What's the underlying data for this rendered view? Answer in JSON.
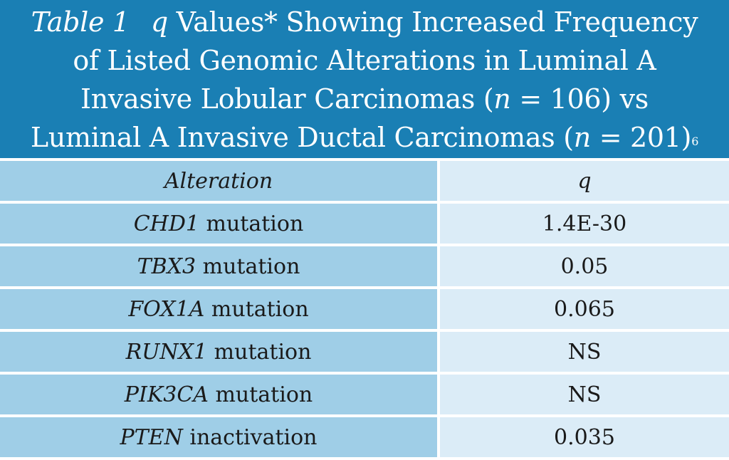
{
  "title": {
    "label": "Table 1",
    "q": "q",
    "line1_rest": " Values* Showing Increased Frequency",
    "line2": "of Listed Genomic Alterations in Luminal A",
    "line3_a": "Invasive Lobular Carcinomas (",
    "n": "n",
    "line3_b": " = 106) vs",
    "line4_a": "Luminal A Invasive Ductal Carcinomas (",
    "line4_b": " = 201)",
    "ref": "6"
  },
  "table": {
    "headers": [
      "Alteration",
      "q"
    ],
    "rows": [
      {
        "gene": "CHD1",
        "type": " mutation",
        "q": "1.4E-30"
      },
      {
        "gene": "TBX3",
        "type": " mutation",
        "q": "0.05"
      },
      {
        "gene": "FOX1A",
        "type": " mutation",
        "q": "0.065"
      },
      {
        "gene": "RUNX1",
        "type": " mutation",
        "q": "NS"
      },
      {
        "gene": "PIK3CA",
        "type": " mutation",
        "q": "NS"
      },
      {
        "gene": "PTEN",
        "type": " inactivation",
        "q": "0.035"
      }
    ]
  },
  "colors": {
    "header": "#1a7fb4",
    "left_column": "#9fcee7",
    "right_column": "#dbecf7"
  }
}
